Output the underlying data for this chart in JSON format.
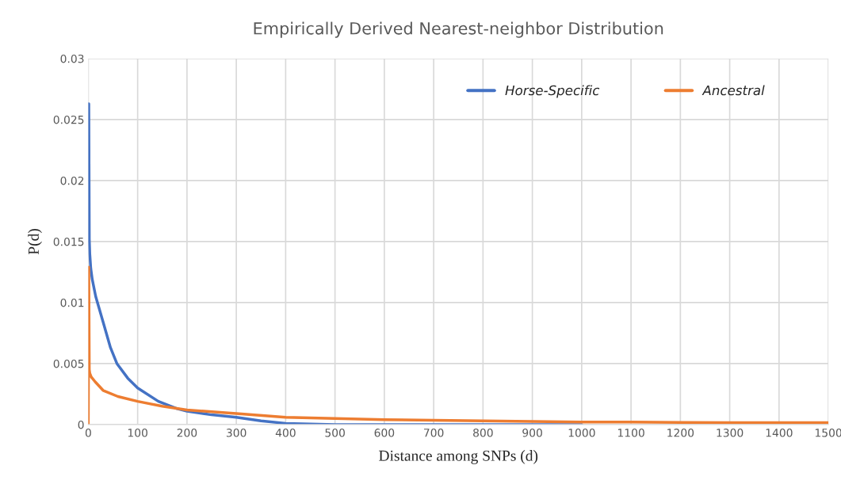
{
  "chart_data": {
    "type": "line",
    "title": "Empirically Derived Nearest-neighbor Distribution",
    "xlabel": "Distance among SNPs (d)",
    "ylabel": "P(d)",
    "xlim": [
      0,
      1500
    ],
    "xticks": [
      0,
      100,
      200,
      300,
      400,
      500,
      600,
      700,
      800,
      900,
      1000,
      1100,
      1200,
      1300,
      1400,
      1500
    ],
    "ylim": [
      0,
      0.03
    ],
    "yticks": [
      0,
      0.005,
      0.01,
      0.015,
      0.02,
      0.025,
      0.03
    ],
    "grid": true,
    "legend": "top right",
    "line_style": "solid",
    "marker": "none",
    "series": [
      {
        "name": "Horse-Specific",
        "color": "#4472c4",
        "x": [
          1,
          2,
          3,
          5,
          8,
          15,
          30,
          45,
          58,
          80,
          100,
          142,
          180,
          200,
          250,
          300,
          350,
          400,
          500,
          600,
          800,
          1000
        ],
        "values": [
          0.0263,
          0.0152,
          0.014,
          0.0128,
          0.0119,
          0.0105,
          0.0084,
          0.0063,
          0.005,
          0.0038,
          0.003,
          0.0019,
          0.0013,
          0.0011,
          0.0008,
          0.0006,
          0.0003,
          0.0001,
          0,
          0,
          0,
          0
        ]
      },
      {
        "name": "Ancestral",
        "color": "#ed7d31",
        "x": [
          0,
          1,
          2,
          3,
          6,
          14,
          30,
          60,
          100,
          150,
          200,
          300,
          400,
          500,
          600,
          700,
          800,
          900,
          1000,
          1100,
          1200,
          1300,
          1400,
          1500
        ],
        "values": [
          0,
          0.0129,
          0.0045,
          0.0042,
          0.0039,
          0.0035,
          0.0028,
          0.0023,
          0.0019,
          0.0015,
          0.0012,
          0.0009,
          0.0006,
          0.0005,
          0.0004,
          0.00035,
          0.0003,
          0.00025,
          0.0002,
          0.0002,
          0.00018,
          0.00016,
          0.00015,
          0.00015
        ]
      }
    ]
  }
}
